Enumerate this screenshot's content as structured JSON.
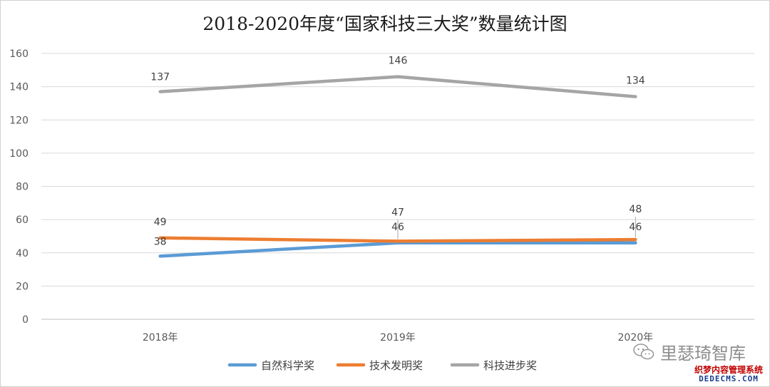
{
  "chart_data": {
    "type": "line",
    "title": "2018-2020年度“国家科技三大奖”数量统计图",
    "categories": [
      "2018年",
      "2019年",
      "2020年"
    ],
    "ylim": [
      0,
      160
    ],
    "yticks": [
      0,
      20,
      40,
      60,
      80,
      100,
      120,
      140,
      160
    ],
    "grid": true,
    "legend_position": "bottom",
    "data_labels": true,
    "series": [
      {
        "name": "自然科学奖",
        "color": "#5b9bd5",
        "values": [
          38,
          46,
          46
        ]
      },
      {
        "name": "技术发明奖",
        "color": "#ed7d31",
        "values": [
          49,
          47,
          48
        ]
      },
      {
        "name": "科技进步奖",
        "color": "#a5a5a5",
        "values": [
          137,
          146,
          134
        ]
      }
    ]
  },
  "watermark": {
    "text": "里瑟琦智库",
    "icon": "wechat-icon"
  },
  "brand_tag": {
    "line1": "织梦内容管理系统",
    "line2": "DEDECMS.COM"
  }
}
